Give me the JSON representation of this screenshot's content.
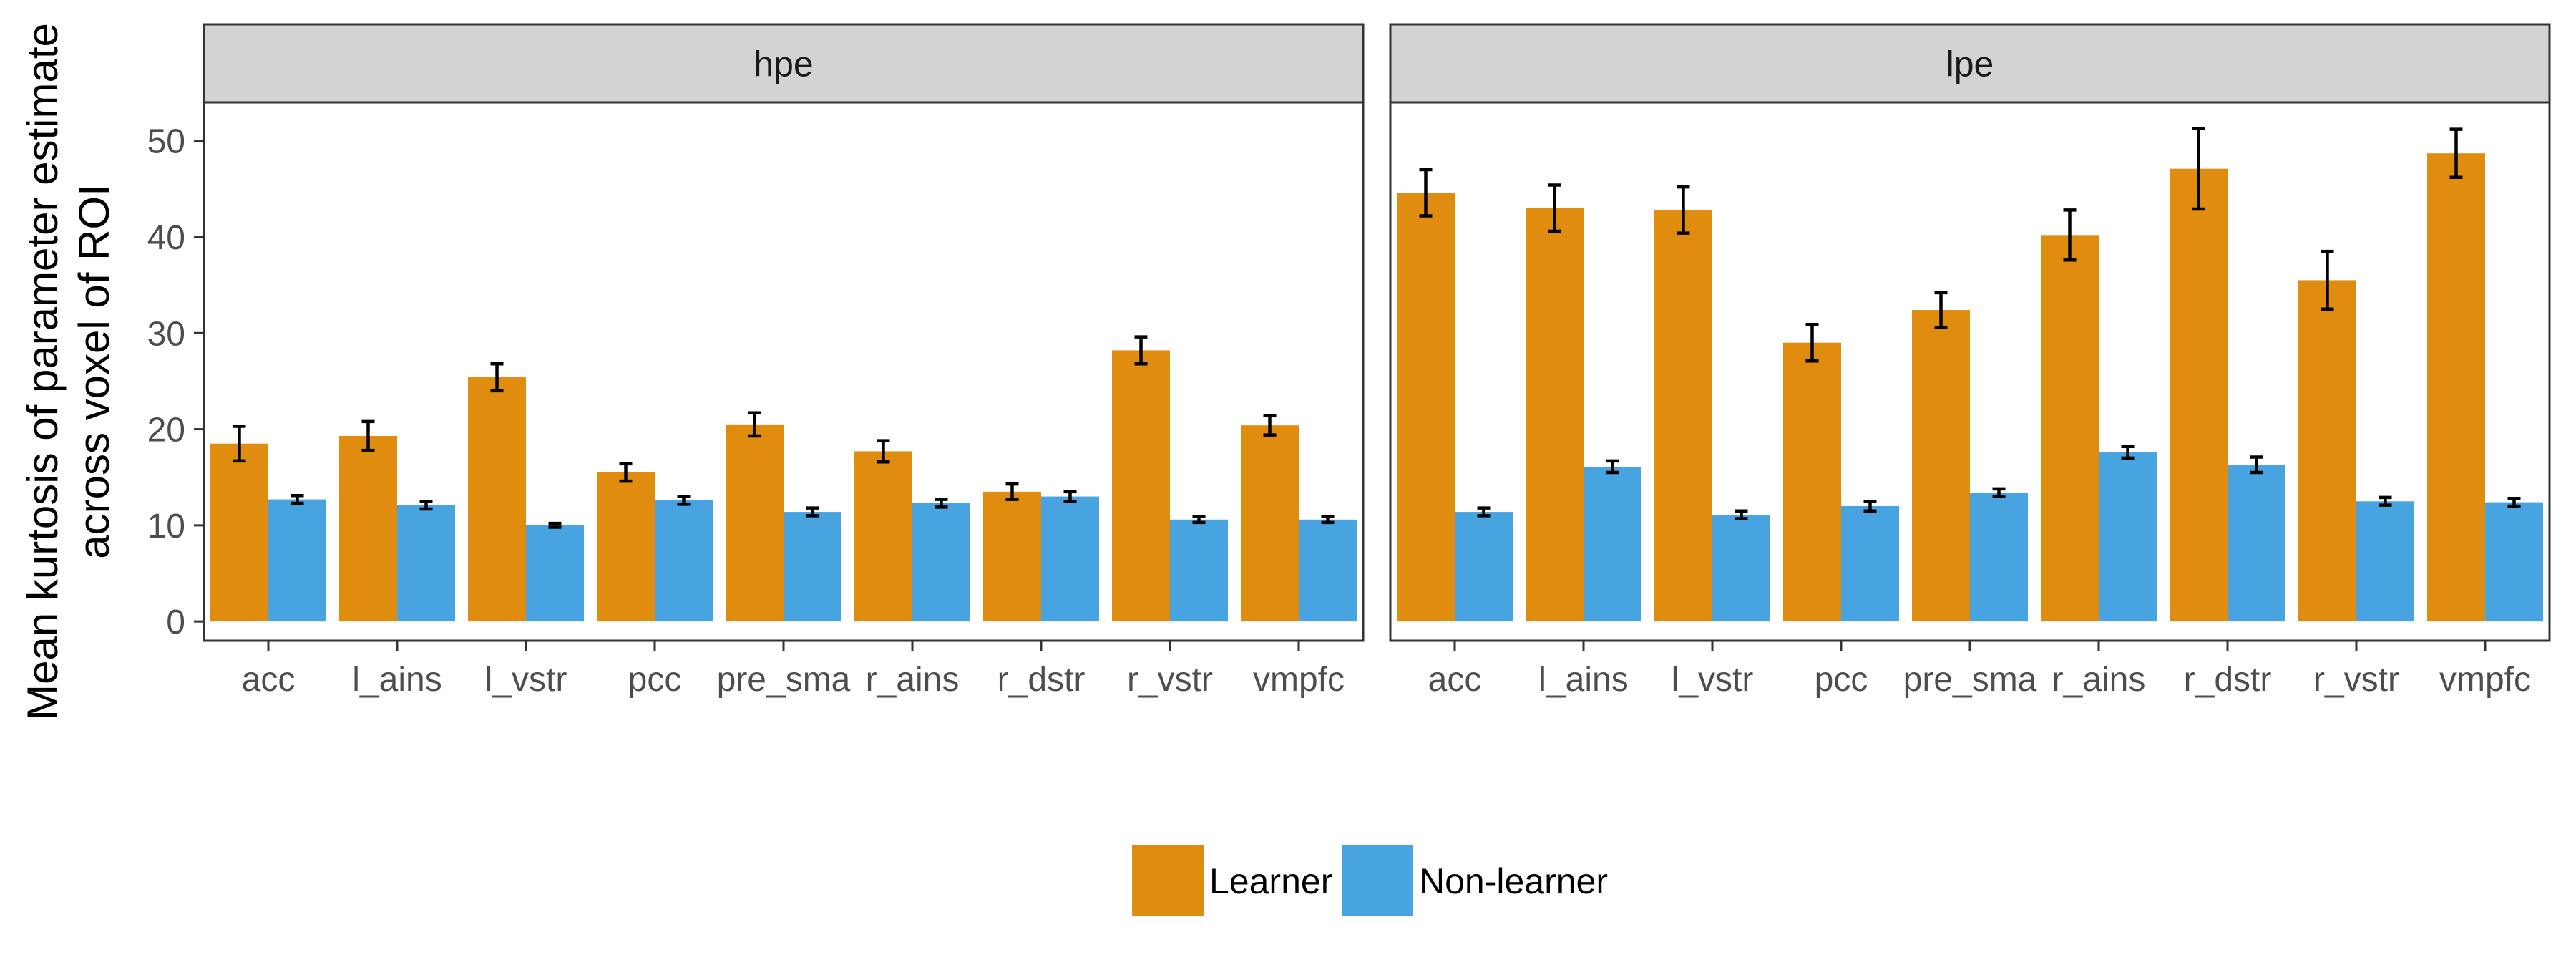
{
  "chart_data": {
    "type": "bar",
    "facets": [
      {
        "name": "hpe",
        "categories": [
          "acc",
          "l_ains",
          "l_vstr",
          "pcc",
          "pre_sma",
          "r_ains",
          "r_dstr",
          "r_vstr",
          "vmpfc"
        ],
        "series": [
          {
            "name": "Learner",
            "values": [
              18.5,
              19.3,
              25.4,
              15.5,
              20.5,
              17.7,
              13.5,
              28.2,
              20.4
            ],
            "errors": [
              1.8,
              1.5,
              1.4,
              0.9,
              1.2,
              1.1,
              0.8,
              1.4,
              1.0
            ]
          },
          {
            "name": "Non-learner",
            "values": [
              12.7,
              12.1,
              10.0,
              12.6,
              11.4,
              12.3,
              13.0,
              10.6,
              10.6
            ],
            "errors": [
              0.4,
              0.4,
              0.2,
              0.4,
              0.4,
              0.4,
              0.5,
              0.3,
              0.3
            ]
          }
        ]
      },
      {
        "name": "lpe",
        "categories": [
          "acc",
          "l_ains",
          "l_vstr",
          "pcc",
          "pre_sma",
          "r_ains",
          "r_dstr",
          "r_vstr",
          "vmpfc"
        ],
        "series": [
          {
            "name": "Learner",
            "values": [
              44.6,
              43.0,
              42.8,
              29.0,
              32.4,
              40.2,
              47.1,
              35.5,
              48.7
            ],
            "errors": [
              2.4,
              2.4,
              2.4,
              1.9,
              1.8,
              2.6,
              4.2,
              3.0,
              2.5
            ]
          },
          {
            "name": "Non-learner",
            "values": [
              11.4,
              16.1,
              11.1,
              12.0,
              13.4,
              17.6,
              16.3,
              12.5,
              12.4
            ],
            "errors": [
              0.4,
              0.6,
              0.4,
              0.5,
              0.4,
              0.6,
              0.8,
              0.4,
              0.4
            ]
          }
        ]
      }
    ],
    "ylabel_lines": [
      "Mean kurtosis of parameter estimate",
      "across voxel of ROI"
    ],
    "yticks": [
      0,
      10,
      20,
      30,
      40,
      50
    ],
    "ylim": [
      -2,
      54
    ],
    "legend": {
      "position": "bottom",
      "entries": [
        "Learner",
        "Non-learner"
      ]
    },
    "colors": {
      "Learner": "#E08C0E",
      "Non-learner": "#48A4E1"
    },
    "grid": false
  }
}
